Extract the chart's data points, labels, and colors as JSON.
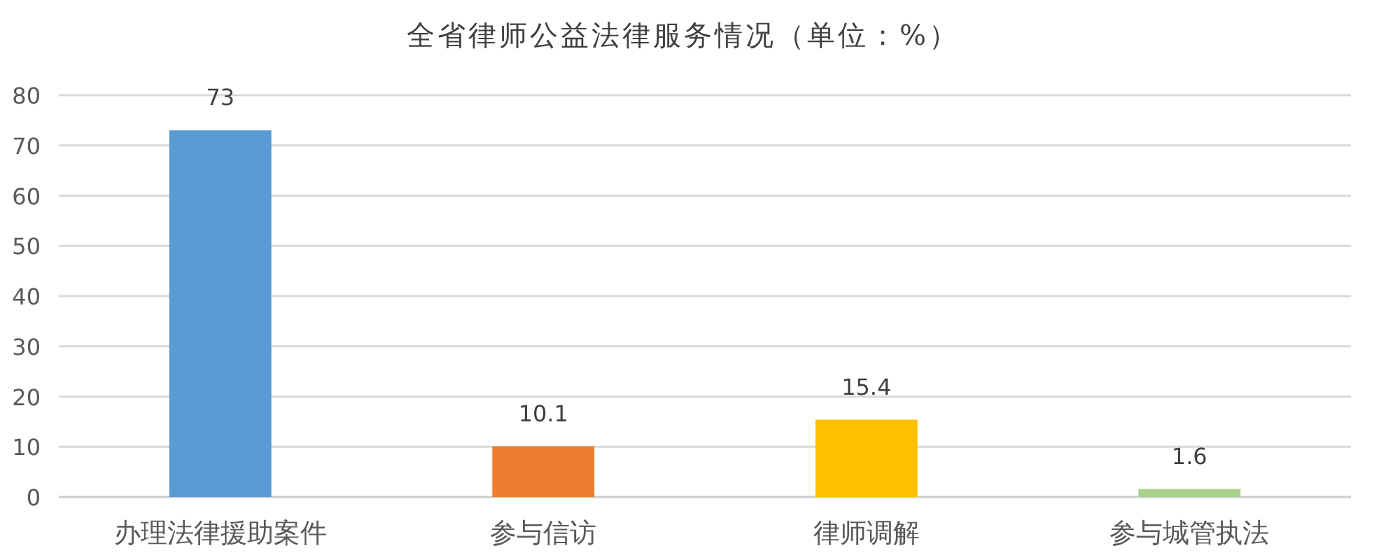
{
  "chart_data": {
    "type": "bar",
    "title": "全省律师公益法律服务情况（单位：%）",
    "categories": [
      "办理法律援助案件",
      "参与信访",
      "律师调解",
      "参与城管执法"
    ],
    "values": [
      73,
      10.1,
      15.4,
      1.6
    ],
    "colors": [
      "#5b9bd5",
      "#ed7d31",
      "#ffc000",
      "#a9d18e"
    ],
    "ylim": [
      0,
      80
    ],
    "yticks": [
      0,
      10,
      20,
      30,
      40,
      50,
      60,
      70,
      80
    ],
    "grid": "y",
    "data_labels": true
  }
}
